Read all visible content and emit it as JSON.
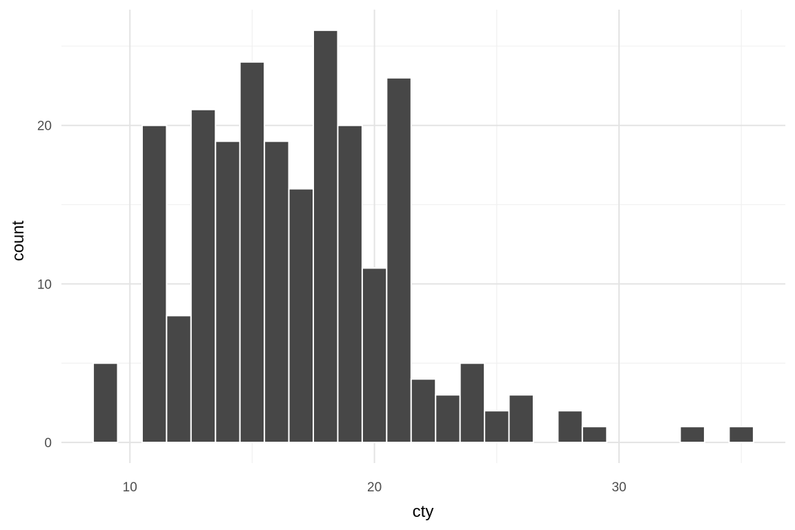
{
  "chart_data": {
    "type": "histogram",
    "title": "",
    "xlabel": "cty",
    "ylabel": "count",
    "bin_width": 1,
    "bins": [
      {
        "x": 9,
        "count": 5
      },
      {
        "x": 10,
        "count": 0
      },
      {
        "x": 11,
        "count": 20
      },
      {
        "x": 12,
        "count": 8
      },
      {
        "x": 13,
        "count": 21
      },
      {
        "x": 14,
        "count": 19
      },
      {
        "x": 15,
        "count": 24
      },
      {
        "x": 16,
        "count": 19
      },
      {
        "x": 17,
        "count": 16
      },
      {
        "x": 18,
        "count": 26
      },
      {
        "x": 19,
        "count": 20
      },
      {
        "x": 20,
        "count": 11
      },
      {
        "x": 21,
        "count": 23
      },
      {
        "x": 22,
        "count": 4
      },
      {
        "x": 23,
        "count": 3
      },
      {
        "x": 24,
        "count": 5
      },
      {
        "x": 25,
        "count": 2
      },
      {
        "x": 26,
        "count": 3
      },
      {
        "x": 27,
        "count": 0
      },
      {
        "x": 28,
        "count": 2
      },
      {
        "x": 29,
        "count": 1
      },
      {
        "x": 30,
        "count": 0
      },
      {
        "x": 31,
        "count": 0
      },
      {
        "x": 32,
        "count": 0
      },
      {
        "x": 33,
        "count": 1
      },
      {
        "x": 34,
        "count": 0
      },
      {
        "x": 35,
        "count": 1
      }
    ],
    "xlim": [
      7.2,
      36.8
    ],
    "ylim": [
      -1.3,
      27.3
    ],
    "x_ticks": [
      10,
      20,
      30
    ],
    "x_minor_ticks": [
      15,
      25,
      35
    ],
    "y_ticks": [
      0,
      10,
      20
    ],
    "y_minor_ticks": [
      5,
      15,
      25
    ],
    "grid": true,
    "legend": "none",
    "bar_color": "#474747",
    "bar_outline": "#ffffff",
    "grid_color": "#ebebeb",
    "background": "#ffffff"
  }
}
